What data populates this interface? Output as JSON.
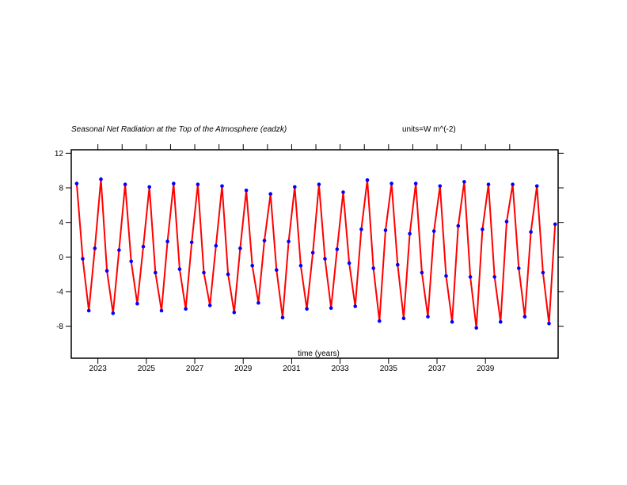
{
  "chart_data": {
    "type": "line",
    "title": "Seasonal Net Radiation at the Top of the Atmosphere (eadzk)",
    "units": "units=W m^(-2)",
    "xlabel": "time (years)",
    "ylabel": "",
    "xlim": [
      2021.9,
      2042.0
    ],
    "ylim": [
      -11.7,
      12.4
    ],
    "xticks": [
      2023,
      2025,
      2027,
      2029,
      2031,
      2033,
      2035,
      2037,
      2039
    ],
    "xticks_minor": [
      2024,
      2026,
      2028,
      2030,
      2032,
      2034,
      2036,
      2038,
      2040
    ],
    "yticks": [
      -8,
      -4,
      0,
      4,
      8,
      12
    ],
    "grid": false,
    "line_color": "#ff0000",
    "marker_color": "#0000ff",
    "series": [
      {
        "x": [
          2022.125,
          2022.375,
          2022.625,
          2022.875,
          2023.125,
          2023.375,
          2023.625,
          2023.875,
          2024.125,
          2024.375,
          2024.625,
          2024.875,
          2025.125,
          2025.375,
          2025.625,
          2025.875,
          2026.125,
          2026.375,
          2026.625,
          2026.875,
          2027.125,
          2027.375,
          2027.625,
          2027.875,
          2028.125,
          2028.375,
          2028.625,
          2028.875,
          2029.125,
          2029.375,
          2029.625,
          2029.875,
          2030.125,
          2030.375,
          2030.625,
          2030.875,
          2031.125,
          2031.375,
          2031.625,
          2031.875,
          2032.125,
          2032.375,
          2032.625,
          2032.875,
          2033.125,
          2033.375,
          2033.625,
          2033.875,
          2034.125,
          2034.375,
          2034.625,
          2034.875,
          2035.125,
          2035.375,
          2035.625,
          2035.875,
          2036.125,
          2036.375,
          2036.625,
          2036.875,
          2037.125,
          2037.375,
          2037.625,
          2037.875,
          2038.125,
          2038.375,
          2038.625,
          2038.875,
          2039.125,
          2039.375,
          2039.625,
          2039.875,
          2040.125,
          2040.375,
          2040.625,
          2040.875,
          2041.125,
          2041.375,
          2041.625,
          2041.875
        ],
        "values": [
          8.5,
          -0.2,
          -6.2,
          1.0,
          9.0,
          -1.6,
          -6.5,
          0.8,
          8.4,
          -0.5,
          -5.4,
          1.2,
          8.1,
          -1.8,
          -6.2,
          1.8,
          8.5,
          -1.4,
          -6.0,
          1.7,
          8.4,
          -1.8,
          -5.6,
          1.3,
          8.2,
          -2.0,
          -6.4,
          1.0,
          7.7,
          -1.0,
          -5.3,
          1.9,
          7.3,
          -1.5,
          -7.0,
          1.8,
          8.1,
          -1.0,
          -6.0,
          0.5,
          8.4,
          -0.2,
          -5.9,
          0.9,
          7.5,
          -0.7,
          -5.7,
          3.2,
          8.9,
          -1.3,
          -7.4,
          3.1,
          8.5,
          -0.9,
          -7.1,
          2.7,
          8.5,
          -1.8,
          -6.9,
          3.0,
          8.2,
          -2.2,
          -7.5,
          3.6,
          8.7,
          -2.3,
          -8.2,
          3.2,
          8.4,
          -2.3,
          -7.5,
          4.1,
          8.4,
          -1.3,
          -6.9,
          2.9,
          8.2,
          -1.8,
          -7.7,
          3.8
        ]
      }
    ]
  }
}
